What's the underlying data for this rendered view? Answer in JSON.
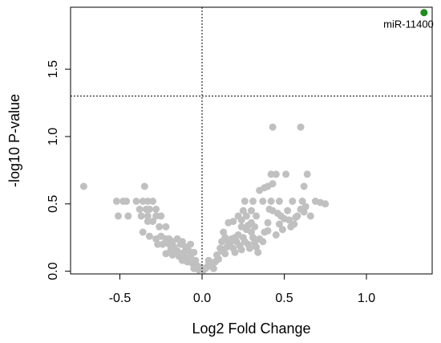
{
  "chart_data": {
    "type": "scatter",
    "title": "",
    "xlabel": "Log2 Fold Change",
    "ylabel": "-log10 P-value",
    "xlim": [
      -0.8,
      1.4
    ],
    "ylim": [
      -0.02,
      1.96
    ],
    "xticks": [
      "-0.5",
      "0.0",
      "0.5",
      "1.0"
    ],
    "xtick_values": [
      -0.5,
      0.0,
      0.5,
      1.0
    ],
    "yticks": [
      "0.0",
      "0.5",
      "1.0",
      "1.5"
    ],
    "ytick_values": [
      0.0,
      0.5,
      1.0,
      1.5
    ],
    "grid": false,
    "threshold_lines": {
      "x": 0.0,
      "y": 1.3
    },
    "colors": {
      "gray": "#c0c0c0",
      "green": "#1e8c1e"
    },
    "highlight": {
      "label": "miR-11400",
      "x": 1.35,
      "y": 1.92
    },
    "points": [
      [
        -0.72,
        0.63
      ],
      [
        -0.52,
        0.52
      ],
      [
        -0.48,
        0.52
      ],
      [
        -0.46,
        0.52
      ],
      [
        -0.51,
        0.41
      ],
      [
        -0.45,
        0.41
      ],
      [
        -0.4,
        0.52
      ],
      [
        -0.36,
        0.52
      ],
      [
        -0.33,
        0.52
      ],
      [
        -0.3,
        0.52
      ],
      [
        -0.35,
        0.63
      ],
      [
        -0.38,
        0.46
      ],
      [
        -0.34,
        0.46
      ],
      [
        -0.32,
        0.46
      ],
      [
        -0.28,
        0.46
      ],
      [
        -0.37,
        0.41
      ],
      [
        -0.33,
        0.41
      ],
      [
        -0.28,
        0.41
      ],
      [
        -0.25,
        0.41
      ],
      [
        -0.33,
        0.37
      ],
      [
        -0.3,
        0.37
      ],
      [
        -0.26,
        0.33
      ],
      [
        -0.22,
        0.33
      ],
      [
        -0.36,
        0.29
      ],
      [
        -0.32,
        0.26
      ],
      [
        -0.28,
        0.24
      ],
      [
        -0.25,
        0.26
      ],
      [
        -0.22,
        0.24
      ],
      [
        -0.2,
        0.24
      ],
      [
        -0.18,
        0.22
      ],
      [
        -0.15,
        0.24
      ],
      [
        -0.12,
        0.22
      ],
      [
        -0.27,
        0.2
      ],
      [
        -0.24,
        0.2
      ],
      [
        -0.2,
        0.2
      ],
      [
        -0.17,
        0.18
      ],
      [
        -0.13,
        0.2
      ],
      [
        -0.1,
        0.18
      ],
      [
        -0.07,
        0.2
      ],
      [
        -0.19,
        0.16
      ],
      [
        -0.15,
        0.15
      ],
      [
        -0.11,
        0.14
      ],
      [
        -0.08,
        0.15
      ],
      [
        -0.05,
        0.14
      ],
      [
        -0.18,
        0.12
      ],
      [
        -0.14,
        0.11
      ],
      [
        -0.1,
        0.1
      ],
      [
        -0.07,
        0.11
      ],
      [
        -0.04,
        0.08
      ],
      [
        -0.12,
        0.08
      ],
      [
        -0.09,
        0.07
      ],
      [
        -0.06,
        0.06
      ],
      [
        -0.03,
        0.04
      ],
      [
        -0.05,
        0.02
      ],
      [
        -0.02,
        0.01
      ],
      [
        -0.01,
        0.03
      ],
      [
        -0.22,
        0.13
      ],
      [
        0.01,
        0.01
      ],
      [
        0.02,
        0.02
      ],
      [
        0.03,
        0.03
      ],
      [
        0.04,
        0.05
      ],
      [
        0.05,
        0.06
      ],
      [
        0.06,
        0.04
      ],
      [
        0.08,
        0.07
      ],
      [
        0.1,
        0.09
      ],
      [
        0.07,
        0.02
      ],
      [
        0.04,
        0.08
      ],
      [
        0.09,
        0.12
      ],
      [
        0.12,
        0.15
      ],
      [
        0.14,
        0.13
      ],
      [
        0.11,
        0.17
      ],
      [
        0.15,
        0.18
      ],
      [
        0.17,
        0.21
      ],
      [
        0.19,
        0.17
      ],
      [
        0.2,
        0.14
      ],
      [
        0.21,
        0.22
      ],
      [
        0.23,
        0.19
      ],
      [
        0.24,
        0.16
      ],
      [
        0.25,
        0.25
      ],
      [
        0.26,
        0.22
      ],
      [
        0.28,
        0.2
      ],
      [
        0.29,
        0.17
      ],
      [
        0.22,
        0.27
      ],
      [
        0.27,
        0.31
      ],
      [
        0.3,
        0.29
      ],
      [
        0.31,
        0.25
      ],
      [
        0.32,
        0.21
      ],
      [
        0.33,
        0.18
      ],
      [
        0.34,
        0.14
      ],
      [
        0.35,
        0.24
      ],
      [
        0.28,
        0.34
      ],
      [
        0.24,
        0.33
      ],
      [
        0.2,
        0.25
      ],
      [
        0.18,
        0.24
      ],
      [
        0.16,
        0.22
      ],
      [
        0.3,
        0.36
      ],
      [
        0.32,
        0.33
      ],
      [
        0.33,
        0.41
      ],
      [
        0.3,
        0.45
      ],
      [
        0.27,
        0.41
      ],
      [
        0.25,
        0.45
      ],
      [
        0.22,
        0.41
      ],
      [
        0.24,
        0.38
      ],
      [
        0.19,
        0.37
      ],
      [
        0.16,
        0.36
      ],
      [
        0.14,
        0.25
      ],
      [
        0.12,
        0.22
      ],
      [
        0.13,
        0.29
      ],
      [
        0.26,
        0.52
      ],
      [
        0.31,
        0.52
      ],
      [
        0.37,
        0.52
      ],
      [
        0.42,
        0.52
      ],
      [
        0.47,
        0.52
      ],
      [
        0.55,
        0.52
      ],
      [
        0.61,
        0.52
      ],
      [
        0.4,
        0.3
      ],
      [
        0.45,
        0.27
      ],
      [
        0.38,
        0.29
      ],
      [
        0.37,
        0.22
      ],
      [
        0.41,
        0.46
      ],
      [
        0.43,
        0.45
      ],
      [
        0.46,
        0.43
      ],
      [
        0.48,
        0.41
      ],
      [
        0.5,
        0.39
      ],
      [
        0.47,
        0.35
      ],
      [
        0.52,
        0.45
      ],
      [
        0.54,
        0.33
      ],
      [
        0.56,
        0.35
      ],
      [
        0.58,
        0.41
      ],
      [
        0.6,
        0.46
      ],
      [
        0.63,
        0.48
      ],
      [
        0.66,
        0.41
      ],
      [
        0.35,
        0.6
      ],
      [
        0.38,
        0.62
      ],
      [
        0.4,
        0.63
      ],
      [
        0.43,
        0.65
      ],
      [
        0.45,
        0.72
      ],
      [
        0.42,
        0.72
      ],
      [
        0.51,
        0.72
      ],
      [
        0.62,
        0.63
      ],
      [
        0.64,
        0.72
      ],
      [
        0.43,
        1.07
      ],
      [
        0.6,
        1.07
      ],
      [
        0.69,
        0.52
      ],
      [
        0.72,
        0.51
      ],
      [
        0.75,
        0.5
      ],
      [
        0.62,
        0.44
      ],
      [
        0.57,
        0.4
      ],
      [
        0.53,
        0.38
      ],
      [
        0.49,
        0.31
      ],
      [
        0.4,
        0.36
      ]
    ]
  }
}
